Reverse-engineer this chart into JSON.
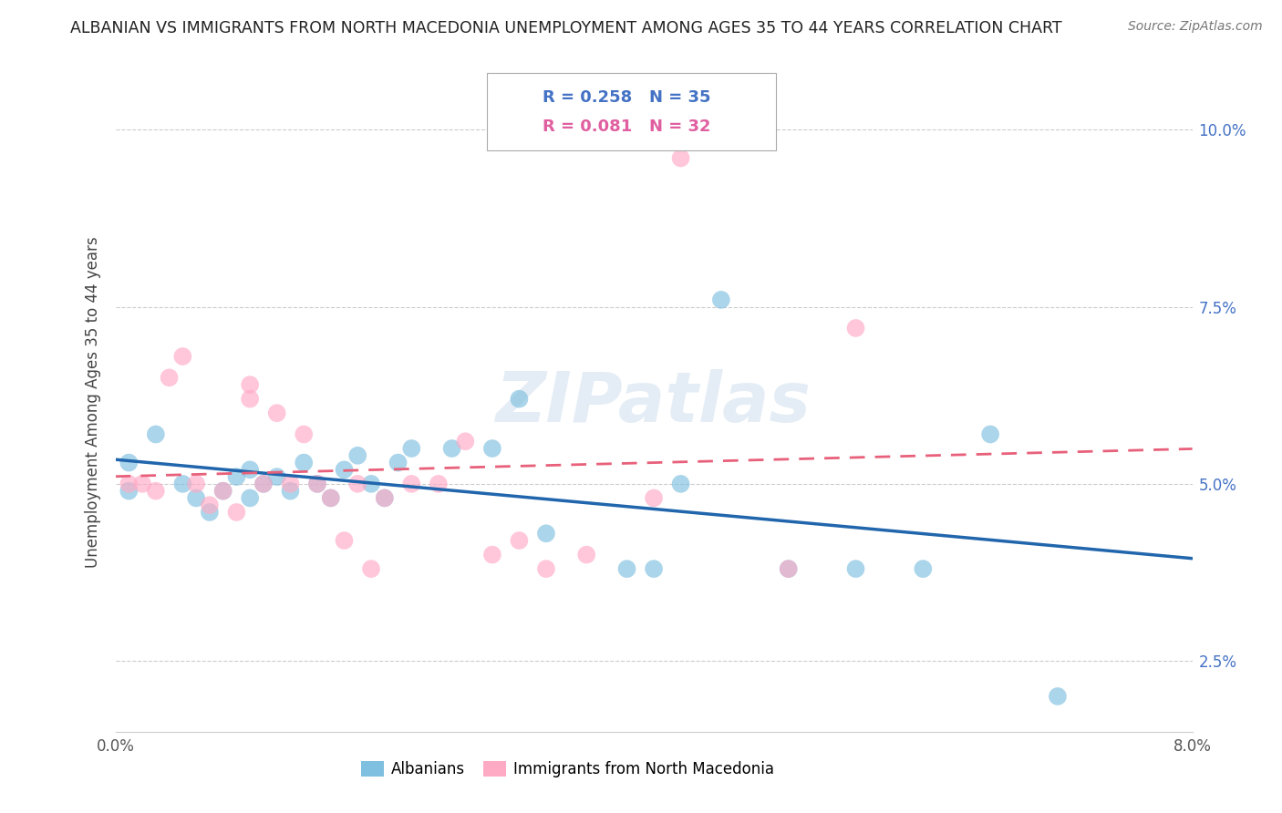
{
  "title": "ALBANIAN VS IMMIGRANTS FROM NORTH MACEDONIA UNEMPLOYMENT AMONG AGES 35 TO 44 YEARS CORRELATION CHART",
  "source": "Source: ZipAtlas.com",
  "ylabel": "Unemployment Among Ages 35 to 44 years",
  "x_tick_positions": [
    0.0,
    0.02,
    0.04,
    0.06,
    0.08
  ],
  "x_tick_labels": [
    "0.0%",
    "",
    "",
    "",
    "8.0%"
  ],
  "y_tick_positions": [
    0.025,
    0.05,
    0.075,
    0.1
  ],
  "y_tick_labels": [
    "2.5%",
    "5.0%",
    "7.5%",
    "10.0%"
  ],
  "xlim": [
    0.0,
    0.08
  ],
  "ylim": [
    0.015,
    0.108
  ],
  "watermark": "ZIPatlas",
  "legend_label_albanians": "Albanians",
  "legend_label_immigrants": "Immigrants from North Macedonia",
  "blue_color": "#7fbfdf",
  "pink_color": "#ffaac5",
  "blue_line_color": "#2166ac",
  "pink_line_color": "#e8607a",
  "background_color": "#ffffff",
  "albanians_x": [
    0.001,
    0.001,
    0.003,
    0.005,
    0.006,
    0.007,
    0.008,
    0.009,
    0.01,
    0.01,
    0.011,
    0.012,
    0.013,
    0.014,
    0.015,
    0.016,
    0.017,
    0.018,
    0.019,
    0.02,
    0.021,
    0.022,
    0.025,
    0.028,
    0.03,
    0.032,
    0.038,
    0.04,
    0.042,
    0.045,
    0.05,
    0.055,
    0.06,
    0.065,
    0.07
  ],
  "albanians_y": [
    0.049,
    0.053,
    0.057,
    0.05,
    0.048,
    0.046,
    0.049,
    0.051,
    0.048,
    0.052,
    0.05,
    0.051,
    0.049,
    0.053,
    0.05,
    0.048,
    0.052,
    0.054,
    0.05,
    0.048,
    0.053,
    0.055,
    0.055,
    0.055,
    0.062,
    0.043,
    0.038,
    0.038,
    0.05,
    0.076,
    0.038,
    0.038,
    0.038,
    0.057,
    0.02
  ],
  "immigrants_x": [
    0.001,
    0.002,
    0.003,
    0.004,
    0.005,
    0.006,
    0.007,
    0.008,
    0.009,
    0.01,
    0.01,
    0.011,
    0.012,
    0.013,
    0.014,
    0.015,
    0.016,
    0.017,
    0.018,
    0.019,
    0.02,
    0.022,
    0.024,
    0.026,
    0.028,
    0.03,
    0.032,
    0.035,
    0.04,
    0.042,
    0.05,
    0.055
  ],
  "immigrants_y": [
    0.05,
    0.05,
    0.049,
    0.065,
    0.068,
    0.05,
    0.047,
    0.049,
    0.046,
    0.062,
    0.064,
    0.05,
    0.06,
    0.05,
    0.057,
    0.05,
    0.048,
    0.042,
    0.05,
    0.038,
    0.048,
    0.05,
    0.05,
    0.056,
    0.04,
    0.042,
    0.038,
    0.04,
    0.048,
    0.096,
    0.038,
    0.072
  ],
  "title_fontsize": 12.5,
  "source_fontsize": 10,
  "legend_fontsize": 13,
  "axis_label_fontsize": 12,
  "tick_fontsize": 12
}
